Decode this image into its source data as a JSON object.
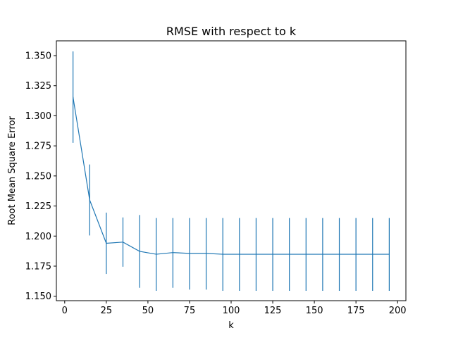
{
  "chart_data": {
    "type": "line",
    "title": "RMSE with respect to k",
    "xlabel": "k",
    "ylabel": "Root Mean Square Error",
    "xlim": [
      -5,
      205
    ],
    "ylim": [
      1.1463,
      1.3623
    ],
    "xticks": [
      0,
      25,
      50,
      75,
      100,
      125,
      150,
      175,
      200
    ],
    "xtick_labels": [
      "0",
      "25",
      "50",
      "75",
      "100",
      "125",
      "150",
      "175",
      "200"
    ],
    "yticks": [
      1.15,
      1.175,
      1.2,
      1.225,
      1.25,
      1.275,
      1.3,
      1.325,
      1.35
    ],
    "ytick_labels": [
      "1.150",
      "1.175",
      "1.200",
      "1.225",
      "1.250",
      "1.275",
      "1.300",
      "1.325",
      "1.350"
    ],
    "grid": false,
    "legend": "none",
    "series": [
      {
        "color": "#1f77b4",
        "x": [
          5,
          15,
          25,
          35,
          45,
          55,
          65,
          75,
          85,
          95,
          105,
          115,
          125,
          135,
          145,
          155,
          165,
          175,
          185,
          195
        ],
        "y": [
          1.3155,
          1.23,
          1.194,
          1.195,
          1.1873,
          1.1849,
          1.1863,
          1.1856,
          1.1856,
          1.1849,
          1.1849,
          1.1849,
          1.1849,
          1.1849,
          1.1849,
          1.1849,
          1.1849,
          1.1849,
          1.1849,
          1.1849
        ],
        "err_low": [
          1.2775,
          1.2005,
          1.1685,
          1.1745,
          1.157,
          1.1545,
          1.157,
          1.1555,
          1.1555,
          1.1545,
          1.1545,
          1.1545,
          1.1545,
          1.1545,
          1.1545,
          1.1545,
          1.1545,
          1.1545,
          1.1545,
          1.1545
        ],
        "err_high": [
          1.3535,
          1.2595,
          1.2195,
          1.2155,
          1.2175,
          1.215,
          1.215,
          1.215,
          1.215,
          1.215,
          1.215,
          1.215,
          1.215,
          1.215,
          1.215,
          1.215,
          1.215,
          1.215,
          1.215,
          1.215
        ]
      }
    ]
  }
}
